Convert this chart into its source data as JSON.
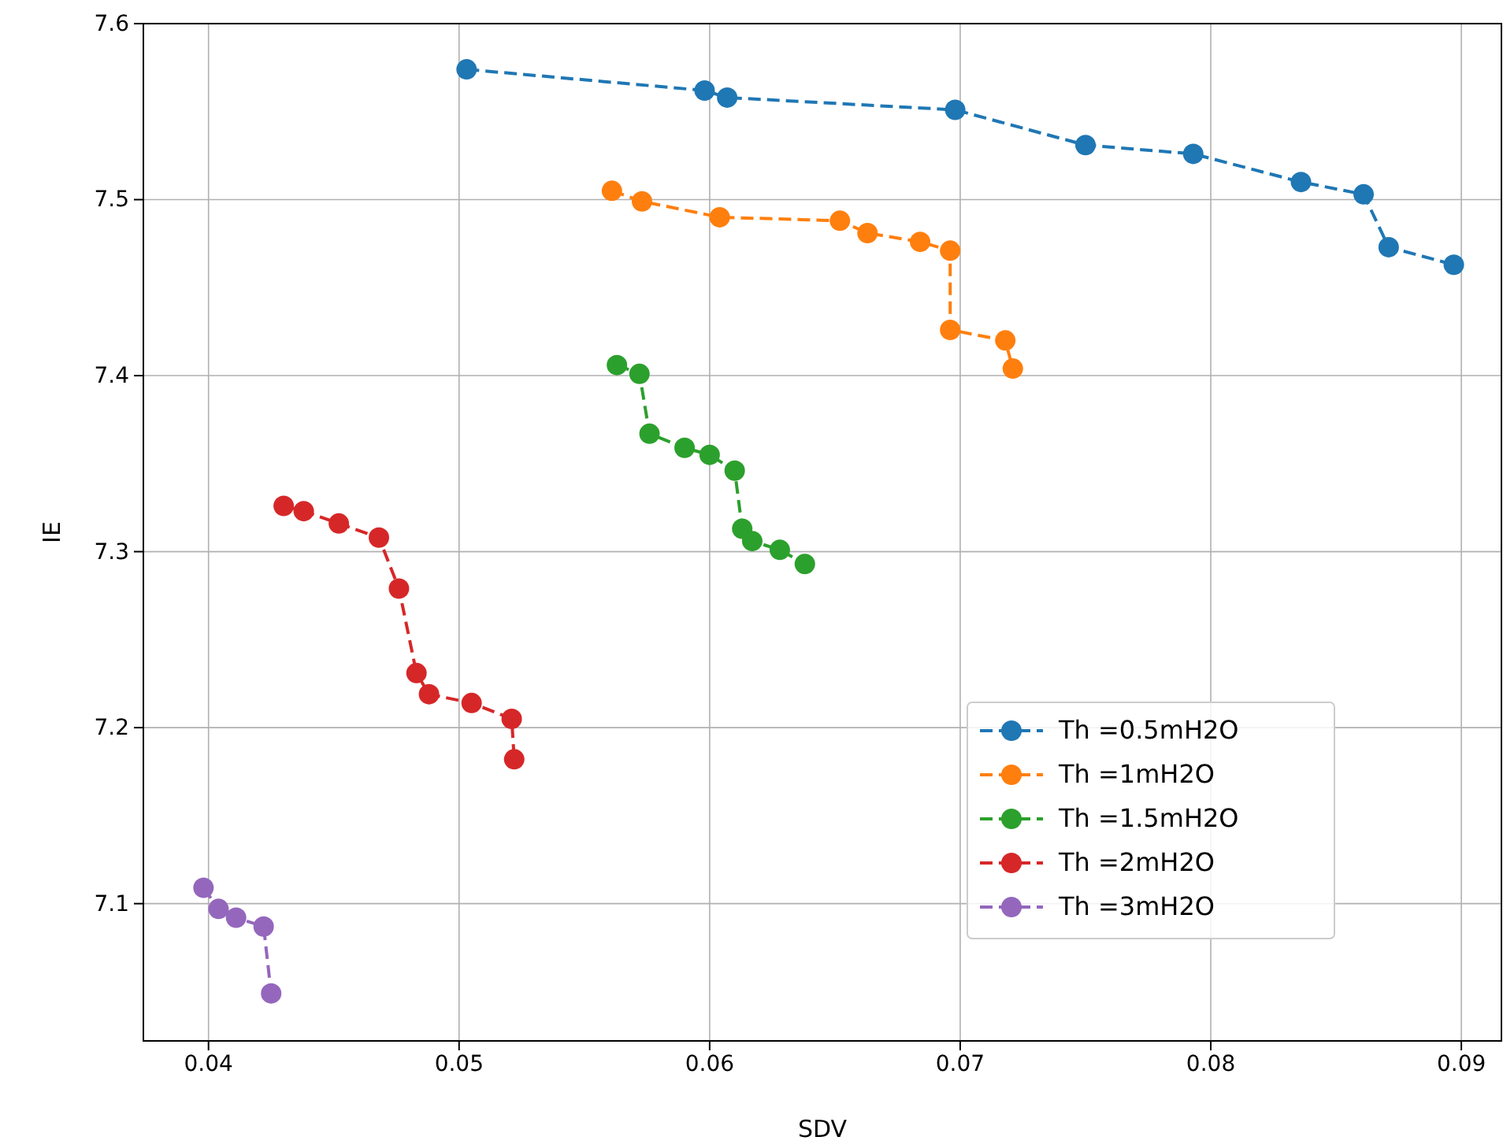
{
  "chart_data": {
    "type": "line",
    "xlabel": "SDV",
    "ylabel": "IE",
    "xlim": [
      0.0374,
      0.0916
    ],
    "ylim": [
      7.022,
      7.6
    ],
    "xticks": [
      0.04,
      0.05,
      0.06,
      0.07,
      0.08,
      0.09
    ],
    "yticks": [
      7.1,
      7.2,
      7.3,
      7.4,
      7.5,
      7.6
    ],
    "grid": true,
    "legend": "bottom right",
    "marker": "circle",
    "line_style": "dashed",
    "series": [
      {
        "name": "Th =0.5mH2O",
        "color": "#1f77b4",
        "x": [
          0.0503,
          0.0598,
          0.0607,
          0.0698,
          0.075,
          0.0793,
          0.0836,
          0.0861,
          0.0871,
          0.0897
        ],
        "values": [
          7.574,
          7.562,
          7.558,
          7.551,
          7.531,
          7.526,
          7.51,
          7.503,
          7.473,
          7.463
        ]
      },
      {
        "name": "Th =1mH2O",
        "color": "#ff7f0e",
        "x": [
          0.0561,
          0.0573,
          0.0604,
          0.0652,
          0.0663,
          0.0684,
          0.0696,
          0.0696,
          0.0718,
          0.0721
        ],
        "values": [
          7.505,
          7.499,
          7.49,
          7.488,
          7.481,
          7.476,
          7.471,
          7.426,
          7.42,
          7.404
        ]
      },
      {
        "name": "Th =1.5mH2O",
        "color": "#2ca02c",
        "x": [
          0.0563,
          0.0572,
          0.0576,
          0.059,
          0.06,
          0.061,
          0.0613,
          0.0617,
          0.0628,
          0.0638
        ],
        "values": [
          7.406,
          7.401,
          7.367,
          7.359,
          7.355,
          7.346,
          7.313,
          7.306,
          7.301,
          7.293
        ]
      },
      {
        "name": "Th =2mH2O",
        "color": "#d62728",
        "x": [
          0.043,
          0.0438,
          0.0452,
          0.0468,
          0.0476,
          0.0483,
          0.0488,
          0.0505,
          0.0521,
          0.0522
        ],
        "values": [
          7.326,
          7.323,
          7.316,
          7.308,
          7.279,
          7.231,
          7.219,
          7.214,
          7.205,
          7.182
        ]
      },
      {
        "name": "Th =3mH2O",
        "color": "#9467bd",
        "x": [
          0.0398,
          0.0404,
          0.0411,
          0.0422,
          0.0425
        ],
        "values": [
          7.109,
          7.097,
          7.092,
          7.087,
          7.049
        ]
      }
    ]
  }
}
